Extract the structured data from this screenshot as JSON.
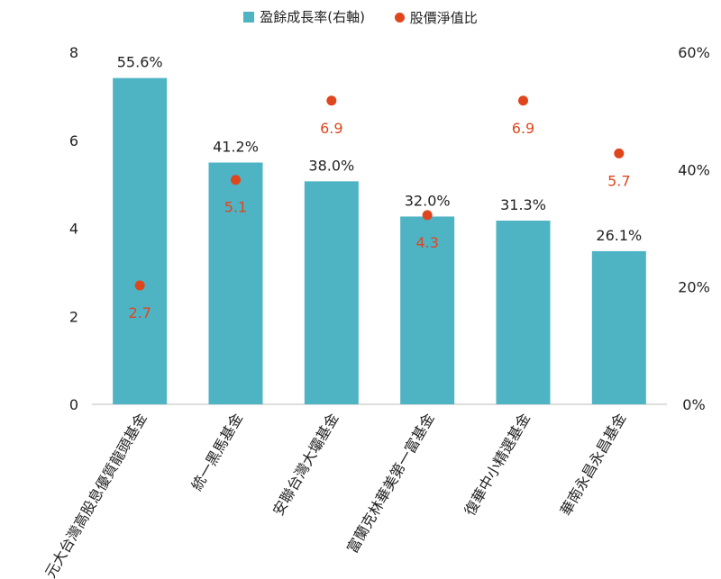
{
  "chart_data": {
    "type": "bar",
    "categories": [
      "元大台灣高股息優質龍頭基金",
      "統一黑馬基金",
      "安聯台灣大壩基金",
      "富蘭克林華美第一富基金",
      "復華中小精選基金",
      "華南永昌永昌基金"
    ],
    "series": [
      {
        "name": "盈餘成長率(右軸)",
        "type": "bar",
        "axis": "right",
        "values": [
          55.6,
          41.2,
          38.0,
          32.0,
          31.3,
          26.1
        ],
        "labels": [
          "55.6%",
          "41.2%",
          "38.0%",
          "32.0%",
          "31.3%",
          "26.1%"
        ],
        "color": "#4eb3c3"
      },
      {
        "name": "股價淨值比",
        "type": "scatter",
        "axis": "left",
        "values": [
          2.7,
          5.1,
          6.9,
          4.3,
          6.9,
          5.7
        ],
        "labels": [
          "2.7",
          "5.1",
          "6.9",
          "4.3",
          "6.9",
          "5.7"
        ],
        "color": "#e0461e"
      }
    ],
    "left_axis": {
      "ylim": [
        0,
        8
      ],
      "ticks": [
        "0",
        "2",
        "4",
        "6",
        "8"
      ]
    },
    "right_axis": {
      "ylim": [
        0,
        60
      ],
      "ticks": [
        "0%",
        "20%",
        "40%",
        "60%"
      ]
    },
    "legend_position": "top-center",
    "grid": false
  }
}
